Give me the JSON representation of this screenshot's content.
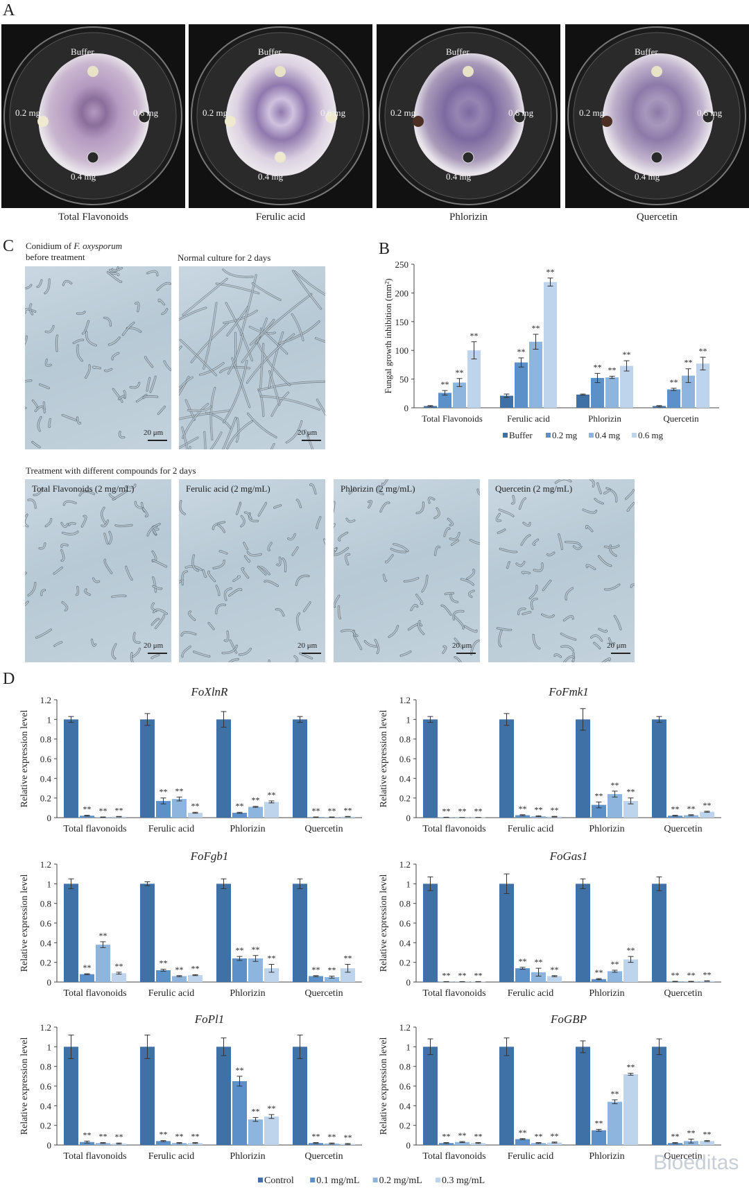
{
  "panels": {
    "A": "A",
    "B": "B",
    "C": "C",
    "D": "D"
  },
  "panelA": {
    "dishes": [
      {
        "caption": "Total Flavonoids",
        "top": "Buffer",
        "left": "0.2 mg",
        "right": "0.6 mg",
        "bottom": "0.4 mg"
      },
      {
        "caption": "Ferulic acid",
        "top": "Buffer",
        "left": "0.2 mg",
        "right": "0.6 mg",
        "bottom": "0.4 mg"
      },
      {
        "caption": "Phlorizin",
        "top": "Buffer",
        "left": "0.2 mg",
        "right": "0.6 mg",
        "bottom": "0.4 mg"
      },
      {
        "caption": "Quercetin",
        "top": "Buffer",
        "left": "0.2 mg",
        "right": "0.6 mg",
        "bottom": "0.4 mg"
      }
    ]
  },
  "panelC": {
    "top": [
      {
        "note_line1": "Conidium of ",
        "note_italic": "F. oxysporum",
        "note_line2": "before treatment",
        "scale": "20 μm"
      },
      {
        "note_line1": "Normal culture for 2 days",
        "note_italic": "",
        "note_line2": "",
        "scale": "20 μm"
      }
    ],
    "treatment_title": "Treatment with different compounds for 2 days",
    "bottom": [
      {
        "label": "Total Flavonoids (2 mg/mL)",
        "scale": "20 μm"
      },
      {
        "label": "Ferulic acid  (2 mg/mL)",
        "scale": "20 μm"
      },
      {
        "label": "Phlorizin (2 mg/mL)",
        "scale": "20 μm"
      },
      {
        "label": "Quercetin (2 mg/mL)",
        "scale": "20 μm"
      }
    ]
  },
  "colors": {
    "s1": "#3f70a6",
    "s2": "#5b90c9",
    "s3": "#8db5de",
    "s4": "#bdd4ec"
  },
  "chart_data": [
    {
      "id": "B",
      "type": "bar",
      "title": "",
      "xlabel": "",
      "ylabel": "Fungal growth inhibition (mm²)",
      "ylim": [
        0,
        250
      ],
      "yticks": [
        0,
        50,
        100,
        150,
        200,
        250
      ],
      "yticklabels": [
        "0",
        "50",
        "100",
        "150",
        "200",
        "250"
      ],
      "categories": [
        "Total Flavonoids",
        "Ferulic acid",
        "Phlorizin",
        "Quercetin"
      ],
      "legend": [
        "Buffer",
        "0.2 mg",
        "0.4 mg",
        "0.6 mg"
      ],
      "legend_position": "bottom",
      "series": [
        {
          "name": "Buffer",
          "values": [
            3,
            21,
            23,
            3
          ],
          "errors": [
            1,
            3,
            1,
            1
          ],
          "marks": [
            "",
            "",
            "",
            ""
          ]
        },
        {
          "name": "0.2 mg",
          "values": [
            26,
            79,
            52,
            32
          ],
          "errors": [
            4,
            8,
            8,
            2
          ],
          "marks": [
            "**",
            "**",
            "**",
            "**"
          ]
        },
        {
          "name": "0.4 mg",
          "values": [
            44,
            115,
            53,
            56
          ],
          "errors": [
            7,
            13,
            2,
            12
          ],
          "marks": [
            "**",
            "**",
            "**",
            "**"
          ]
        },
        {
          "name": "0.6 mg",
          "values": [
            100,
            219,
            73,
            77
          ],
          "errors": [
            15,
            7,
            9,
            11
          ],
          "marks": [
            "**",
            "**",
            "**",
            "**"
          ]
        }
      ]
    },
    {
      "id": "D1",
      "type": "bar",
      "title": "FoXlnR",
      "ylabel": "Relative expression level",
      "ylim": [
        0,
        1.2
      ],
      "yticks": [
        0,
        0.2,
        0.4,
        0.6,
        0.8,
        1,
        1.2
      ],
      "yticklabels": [
        "0",
        "0.2",
        "0.4",
        "0.6",
        "0.8",
        "1",
        "1.2"
      ],
      "categories": [
        "Total flavonoids",
        "Ferulic acid",
        "Phlorizin",
        "Quercetin"
      ],
      "series": [
        {
          "name": "Control",
          "values": [
            1,
            1,
            1,
            1
          ],
          "errors": [
            0.03,
            0.06,
            0.08,
            0.03
          ],
          "marks": [
            "",
            "",
            "",
            ""
          ]
        },
        {
          "name": "0.1 mg/mL",
          "values": [
            0.02,
            0.17,
            0.05,
            0.005
          ],
          "errors": [
            0.005,
            0.03,
            0.005,
            0.002
          ],
          "marks": [
            "**",
            "**",
            "**",
            "**"
          ]
        },
        {
          "name": "0.2 mg/mL",
          "values": [
            0.005,
            0.19,
            0.11,
            0.005
          ],
          "errors": [
            0.002,
            0.02,
            0.005,
            0.002
          ],
          "marks": [
            "**",
            "**",
            "**",
            "**"
          ]
        },
        {
          "name": "0.3 mg/mL",
          "values": [
            0.01,
            0.05,
            0.16,
            0.01
          ],
          "errors": [
            0.002,
            0.005,
            0.01,
            0.002
          ],
          "marks": [
            "**",
            "**",
            "**",
            "**"
          ]
        }
      ]
    },
    {
      "id": "D2",
      "type": "bar",
      "title": "FoFmk1",
      "ylabel": "Relative expression level",
      "ylim": [
        0,
        1.2
      ],
      "yticks": [
        0,
        0.2,
        0.4,
        0.6,
        0.8,
        1,
        1.2
      ],
      "yticklabels": [
        "0",
        "0.2",
        "0.4",
        "0.6",
        "0.8",
        "1",
        "1.2"
      ],
      "categories": [
        "Total flavonoids",
        "Ferulic acid",
        "Phlorizin",
        "Quercetin"
      ],
      "series": [
        {
          "name": "Control",
          "values": [
            1,
            1,
            1,
            1
          ],
          "errors": [
            0.03,
            0.06,
            0.11,
            0.03
          ],
          "marks": [
            "",
            "",
            "",
            ""
          ]
        },
        {
          "name": "0.1 mg/mL",
          "values": [
            0.003,
            0.025,
            0.13,
            0.02
          ],
          "errors": [
            0.001,
            0.005,
            0.03,
            0.005
          ],
          "marks": [
            "**",
            "**",
            "**",
            "**"
          ]
        },
        {
          "name": "0.2 mg/mL",
          "values": [
            0.002,
            0.015,
            0.24,
            0.025
          ],
          "errors": [
            0.001,
            0.004,
            0.03,
            0.005
          ],
          "marks": [
            "**",
            "**",
            "**",
            "**"
          ]
        },
        {
          "name": "0.3 mg/mL",
          "values": [
            0.002,
            0.01,
            0.17,
            0.06
          ],
          "errors": [
            0.001,
            0.003,
            0.03,
            0.005
          ],
          "marks": [
            "**",
            "**",
            "**",
            "**"
          ]
        }
      ]
    },
    {
      "id": "D3",
      "type": "bar",
      "title": "FoFgb1",
      "ylabel": "Relative expression level",
      "ylim": [
        0,
        1.2
      ],
      "yticks": [
        0,
        0.2,
        0.4,
        0.6,
        0.8,
        1,
        1.2
      ],
      "yticklabels": [
        "0",
        "0.2",
        "0.4",
        "0.6",
        "0.8",
        "1",
        "1.2"
      ],
      "categories": [
        "Total flavonoids",
        "Ferulic acid",
        "Phlorizin",
        "Quercetin"
      ],
      "series": [
        {
          "name": "Control",
          "values": [
            1,
            1,
            1,
            1
          ],
          "errors": [
            0.05,
            0.02,
            0.05,
            0.05
          ],
          "marks": [
            "",
            "",
            "",
            ""
          ]
        },
        {
          "name": "0.1 mg/mL",
          "values": [
            0.08,
            0.12,
            0.24,
            0.06
          ],
          "errors": [
            0.005,
            0.01,
            0.02,
            0.005
          ],
          "marks": [
            "**",
            "**",
            "**",
            "**"
          ]
        },
        {
          "name": "0.2 mg/mL",
          "values": [
            0.38,
            0.06,
            0.24,
            0.05
          ],
          "errors": [
            0.03,
            0.005,
            0.03,
            0.01
          ],
          "marks": [
            "**",
            "**",
            "**",
            "**"
          ]
        },
        {
          "name": "0.3 mg/mL",
          "values": [
            0.09,
            0.07,
            0.14,
            0.14
          ],
          "errors": [
            0.01,
            0.005,
            0.04,
            0.04
          ],
          "marks": [
            "**",
            "**",
            "**",
            "**"
          ]
        }
      ]
    },
    {
      "id": "D4",
      "type": "bar",
      "title": "FoGas1",
      "ylabel": "Relative expression level",
      "ylim": [
        0,
        1.2
      ],
      "yticks": [
        0,
        0.2,
        0.4,
        0.6,
        0.8,
        1,
        1.2
      ],
      "yticklabels": [
        "0",
        "0.2",
        "0.4",
        "0.6",
        "0.8",
        "1",
        "1.2"
      ],
      "categories": [
        "Total flavonoids",
        "Ferulic acid",
        "Phlorizin",
        "Quercetin"
      ],
      "series": [
        {
          "name": "Control",
          "values": [
            1,
            1,
            1,
            1
          ],
          "errors": [
            0.07,
            0.1,
            0.05,
            0.07
          ],
          "marks": [
            "",
            "",
            "",
            ""
          ]
        },
        {
          "name": "0.1 mg/mL",
          "values": [
            0.003,
            0.14,
            0.03,
            0.005
          ],
          "errors": [
            0.001,
            0.01,
            0.005,
            0.002
          ],
          "marks": [
            "**",
            "**",
            "**",
            "**"
          ]
        },
        {
          "name": "0.2 mg/mL",
          "values": [
            0.003,
            0.1,
            0.11,
            0.005
          ],
          "errors": [
            0.001,
            0.04,
            0.01,
            0.002
          ],
          "marks": [
            "**",
            "**",
            "**",
            "**"
          ]
        },
        {
          "name": "0.3 mg/mL",
          "values": [
            0.003,
            0.06,
            0.23,
            0.01
          ],
          "errors": [
            0.001,
            0.005,
            0.03,
            0.002
          ],
          "marks": [
            "**",
            "**",
            "**",
            "**"
          ]
        }
      ]
    },
    {
      "id": "D5",
      "type": "bar",
      "title": "FoPl1",
      "ylabel": "Relative expression level",
      "ylim": [
        0,
        1.2
      ],
      "yticks": [
        0,
        0.2,
        0.4,
        0.6,
        0.8,
        1,
        1.2
      ],
      "yticklabels": [
        "0",
        "0.2",
        "0.4",
        "0.6",
        "0.8",
        "1",
        "1.2"
      ],
      "categories": [
        "Total flavonoids",
        "Ferulic acid",
        "Phlorizin",
        "Quercetin"
      ],
      "series": [
        {
          "name": "Control",
          "values": [
            1,
            1,
            1,
            1
          ],
          "errors": [
            0.12,
            0.12,
            0.09,
            0.12
          ],
          "marks": [
            "",
            "",
            "",
            ""
          ]
        },
        {
          "name": "0.1 mg/mL",
          "values": [
            0.03,
            0.04,
            0.65,
            0.02
          ],
          "errors": [
            0.01,
            0.005,
            0.05,
            0.005
          ],
          "marks": [
            "**",
            "**",
            "**",
            "**"
          ]
        },
        {
          "name": "0.2 mg/mL",
          "values": [
            0.02,
            0.02,
            0.26,
            0.015
          ],
          "errors": [
            0.005,
            0.005,
            0.02,
            0.005
          ],
          "marks": [
            "**",
            "**",
            "**",
            "**"
          ]
        },
        {
          "name": "0.3 mg/mL",
          "values": [
            0.015,
            0.02,
            0.29,
            0.01
          ],
          "errors": [
            0.005,
            0.005,
            0.02,
            0.005
          ],
          "marks": [
            "**",
            "**",
            "**",
            "**"
          ]
        }
      ]
    },
    {
      "id": "D6",
      "type": "bar",
      "title": "FoGBP",
      "ylabel": "Relative expression level",
      "ylim": [
        0,
        1.2
      ],
      "yticks": [
        0,
        0.2,
        0.4,
        0.6,
        0.8,
        1,
        1.2
      ],
      "yticklabels": [
        "0",
        "0.2",
        "0.4",
        "0.6",
        "0.8",
        "1",
        "1.2"
      ],
      "categories": [
        "Total flavonoids",
        "Ferulic acid",
        "Phlorizin",
        "Quercetin"
      ],
      "series": [
        {
          "name": "Control",
          "values": [
            1,
            1,
            1,
            1
          ],
          "errors": [
            0.08,
            0.09,
            0.06,
            0.08
          ],
          "marks": [
            "",
            "",
            "",
            ""
          ]
        },
        {
          "name": "0.1 mg/mL",
          "values": [
            0.02,
            0.06,
            0.15,
            0.02
          ],
          "errors": [
            0.005,
            0.005,
            0.01,
            0.005
          ],
          "marks": [
            "**",
            "**",
            "**",
            "**"
          ]
        },
        {
          "name": "0.2 mg/mL",
          "values": [
            0.03,
            0.02,
            0.44,
            0.04
          ],
          "errors": [
            0.005,
            0.005,
            0.02,
            0.02
          ],
          "marks": [
            "**",
            "**",
            "**",
            "**"
          ]
        },
        {
          "name": "0.3 mg/mL",
          "values": [
            0.02,
            0.025,
            0.72,
            0.04
          ],
          "errors": [
            0.005,
            0.005,
            0.01,
            0.005
          ],
          "marks": [
            "**",
            "**",
            "**",
            "**"
          ]
        }
      ]
    }
  ],
  "legendD": [
    "Control",
    "0.1 mg/mL",
    "0.2 mg/mL",
    "0.3 mg/mL"
  ],
  "watermark": "Bioeditas"
}
